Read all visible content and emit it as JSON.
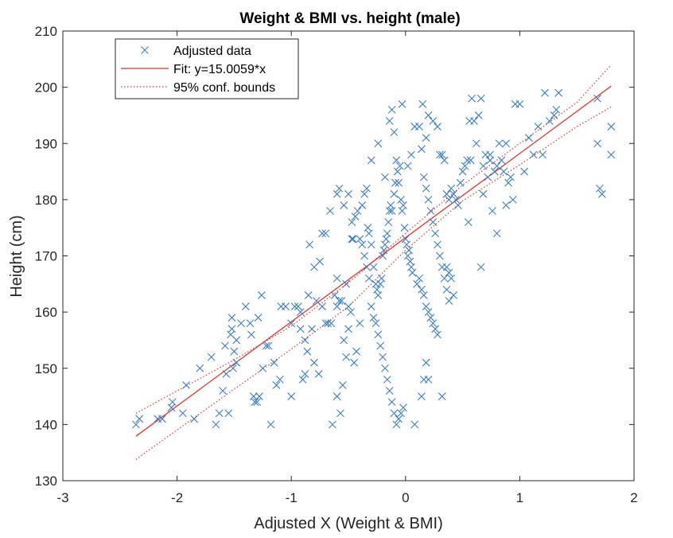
{
  "chart_data": {
    "type": "scatter",
    "title": "Weight & BMI vs. height (male)",
    "xlabel": "Adjusted X (Weight & BMI)",
    "ylabel": "Height (cm)",
    "xlim": [
      -3,
      2
    ],
    "ylim": [
      130,
      210
    ],
    "xticks": [
      "-3",
      "-2",
      "-1",
      "0",
      "1",
      "2"
    ],
    "yticks": [
      "130",
      "140",
      "150",
      "160",
      "170",
      "180",
      "190",
      "200",
      "210"
    ],
    "grid": false,
    "legend_position": "top-left",
    "colors": {
      "data": "#3d7fc4",
      "fit": "#e8312a",
      "bounds": "#e8312a",
      "axes": "#262626"
    },
    "series": [
      {
        "name": "Adjusted data",
        "kind": "scatter",
        "marker": "x",
        "points": [
          [
            -2.36,
            140
          ],
          [
            -2.33,
            141
          ],
          [
            -2.17,
            141
          ],
          [
            -2.13,
            141
          ],
          [
            -2.05,
            143
          ],
          [
            -2.04,
            144
          ],
          [
            -1.95,
            142
          ],
          [
            -1.92,
            147
          ],
          [
            -1.85,
            141
          ],
          [
            -1.8,
            150
          ],
          [
            -1.7,
            152
          ],
          [
            -1.66,
            140
          ],
          [
            -1.63,
            142
          ],
          [
            -1.6,
            146
          ],
          [
            -1.58,
            154
          ],
          [
            -1.57,
            149
          ],
          [
            -1.55,
            142
          ],
          [
            -1.53,
            156
          ],
          [
            -1.5,
            153
          ],
          [
            -1.48,
            151
          ],
          [
            -1.52,
            159
          ],
          [
            -1.52,
            157
          ],
          [
            -1.51,
            150
          ],
          [
            -1.48,
            155
          ],
          [
            -1.36,
            158
          ],
          [
            -1.35,
            156
          ],
          [
            -1.33,
            145
          ],
          [
            -1.32,
            144
          ],
          [
            -1.3,
            144
          ],
          [
            -1.29,
            159
          ],
          [
            -1.28,
            145
          ],
          [
            -1.26,
            163
          ],
          [
            -1.25,
            150
          ],
          [
            -1.22,
            154
          ],
          [
            -1.2,
            154
          ],
          [
            -1.18,
            140
          ],
          [
            -1.15,
            151
          ],
          [
            -1.13,
            147
          ],
          [
            -1.1,
            148
          ],
          [
            -1.09,
            161
          ],
          [
            -1.05,
            161
          ],
          [
            -1.0,
            145
          ],
          [
            -0.97,
            161
          ],
          [
            -0.94,
            161
          ],
          [
            -0.92,
            160
          ],
          [
            -0.9,
            148
          ],
          [
            -0.88,
            149
          ],
          [
            -0.86,
            153
          ],
          [
            -0.85,
            163
          ],
          [
            -0.82,
            157
          ],
          [
            -0.84,
            172
          ],
          [
            -0.8,
            168
          ],
          [
            -0.78,
            162
          ],
          [
            -0.75,
            169
          ],
          [
            -0.73,
            161
          ],
          [
            -0.7,
            158
          ],
          [
            -0.73,
            174
          ],
          [
            -0.7,
            174
          ],
          [
            -0.68,
            158
          ],
          [
            -0.66,
            178
          ],
          [
            -0.65,
            158
          ],
          [
            -0.62,
            163
          ],
          [
            -0.6,
            161
          ],
          [
            -0.58,
            162
          ],
          [
            -0.56,
            162
          ],
          [
            -0.54,
            155
          ],
          [
            -0.52,
            165
          ],
          [
            -0.5,
            161
          ],
          [
            -0.48,
            160
          ],
          [
            -0.47,
            176
          ],
          [
            -0.46,
            173
          ],
          [
            -0.6,
            166
          ],
          [
            -0.64,
            140
          ],
          [
            -0.6,
            145
          ],
          [
            -0.57,
            142
          ],
          [
            -0.55,
            147
          ],
          [
            -0.52,
            152
          ],
          [
            -0.5,
            157
          ],
          [
            -0.47,
            173
          ],
          [
            -0.45,
            151
          ],
          [
            -0.43,
            153
          ],
          [
            -0.4,
            158
          ],
          [
            -0.38,
            179
          ],
          [
            -0.36,
            181
          ],
          [
            -0.34,
            182
          ],
          [
            -0.33,
            175
          ],
          [
            -0.32,
            174
          ],
          [
            -0.3,
            172
          ],
          [
            -0.28,
            168
          ],
          [
            -0.26,
            165
          ],
          [
            -0.25,
            164
          ],
          [
            -0.24,
            163
          ],
          [
            -0.22,
            165
          ],
          [
            -0.21,
            166
          ],
          [
            -0.2,
            170
          ],
          [
            -0.19,
            171
          ],
          [
            -0.18,
            172
          ],
          [
            -0.17,
            173
          ],
          [
            -0.16,
            174
          ],
          [
            -0.15,
            176
          ],
          [
            -0.14,
            178
          ],
          [
            -0.13,
            179
          ],
          [
            -0.12,
            178
          ],
          [
            -0.1,
            181
          ],
          [
            -0.09,
            183
          ],
          [
            -0.08,
            187
          ],
          [
            -0.07,
            185
          ],
          [
            -0.06,
            183
          ],
          [
            -0.05,
            186
          ],
          [
            -0.04,
            180
          ],
          [
            -0.03,
            178
          ],
          [
            -0.02,
            179
          ],
          [
            -0.01,
            175
          ],
          [
            0.0,
            173
          ],
          [
            0.01,
            172
          ],
          [
            0.02,
            170
          ],
          [
            0.03,
            171
          ],
          [
            0.04,
            169
          ],
          [
            0.05,
            168
          ],
          [
            0.06,
            167
          ],
          [
            -0.4,
            173
          ],
          [
            -0.38,
            172
          ],
          [
            -0.36,
            170
          ],
          [
            -0.34,
            168
          ],
          [
            -0.32,
            166
          ],
          [
            -0.3,
            161
          ],
          [
            -0.28,
            159
          ],
          [
            -0.26,
            158
          ],
          [
            -0.24,
            156
          ],
          [
            -0.22,
            154
          ],
          [
            -0.2,
            152
          ],
          [
            -0.18,
            150
          ],
          [
            -0.16,
            148
          ],
          [
            -0.14,
            146
          ],
          [
            -0.12,
            144
          ],
          [
            -0.1,
            142
          ],
          [
            -0.08,
            140
          ],
          [
            -0.06,
            141
          ],
          [
            -0.04,
            142
          ],
          [
            -0.02,
            143
          ],
          [
            -0.6,
            181
          ],
          [
            -0.58,
            182
          ],
          [
            -0.54,
            179
          ],
          [
            -0.5,
            181
          ],
          [
            -0.44,
            177
          ],
          [
            -0.42,
            178
          ],
          [
            -0.3,
            187
          ],
          [
            -0.24,
            190
          ],
          [
            -0.18,
            184
          ],
          [
            -0.14,
            194
          ],
          [
            -0.12,
            196
          ],
          [
            -0.1,
            192
          ],
          [
            -0.03,
            197
          ],
          [
            0.02,
            186
          ],
          [
            0.05,
            188
          ],
          [
            0.08,
            193
          ],
          [
            0.12,
            193
          ],
          [
            0.14,
            189
          ],
          [
            0.16,
            184
          ],
          [
            0.18,
            182
          ],
          [
            0.2,
            180
          ],
          [
            0.22,
            178
          ],
          [
            0.24,
            176
          ],
          [
            0.26,
            174
          ],
          [
            0.28,
            172
          ],
          [
            0.3,
            170
          ],
          [
            0.32,
            168
          ],
          [
            0.34,
            166
          ],
          [
            0.36,
            164
          ],
          [
            0.38,
            162
          ],
          [
            0.1,
            165
          ],
          [
            0.12,
            166
          ],
          [
            0.14,
            164
          ],
          [
            0.16,
            163
          ],
          [
            0.18,
            161
          ],
          [
            0.2,
            160
          ],
          [
            0.22,
            159
          ],
          [
            0.24,
            158
          ],
          [
            0.26,
            157
          ],
          [
            0.28,
            156
          ],
          [
            0.08,
            140
          ],
          [
            0.14,
            145
          ],
          [
            0.16,
            148
          ],
          [
            0.18,
            151
          ],
          [
            0.2,
            148
          ],
          [
            0.32,
            145
          ],
          [
            0.36,
            168
          ],
          [
            0.38,
            167
          ],
          [
            0.4,
            166
          ],
          [
            0.42,
            163
          ],
          [
            0.15,
            197
          ],
          [
            0.18,
            191
          ],
          [
            0.2,
            195
          ],
          [
            0.24,
            194
          ],
          [
            0.28,
            193
          ],
          [
            0.3,
            188
          ],
          [
            0.32,
            188
          ],
          [
            0.34,
            187
          ],
          [
            0.36,
            181
          ],
          [
            0.38,
            180
          ],
          [
            0.4,
            182
          ],
          [
            0.42,
            181
          ],
          [
            0.44,
            180
          ],
          [
            0.46,
            179
          ],
          [
            0.48,
            183
          ],
          [
            0.5,
            185
          ],
          [
            0.52,
            186
          ],
          [
            0.54,
            187
          ],
          [
            0.56,
            194
          ],
          [
            0.58,
            198
          ],
          [
            0.55,
            176
          ],
          [
            0.57,
            187
          ],
          [
            0.6,
            194
          ],
          [
            0.62,
            190
          ],
          [
            0.64,
            195
          ],
          [
            0.66,
            198
          ],
          [
            0.68,
            181
          ],
          [
            0.7,
            188
          ],
          [
            0.72,
            184
          ],
          [
            0.74,
            188
          ],
          [
            0.76,
            178
          ],
          [
            0.78,
            185
          ],
          [
            0.8,
            174
          ],
          [
            0.82,
            190
          ],
          [
            0.84,
            187
          ],
          [
            0.86,
            185
          ],
          [
            0.88,
            179
          ],
          [
            0.9,
            183
          ],
          [
            0.92,
            184
          ],
          [
            0.94,
            180
          ],
          [
            0.66,
            168
          ],
          [
            0.68,
            186
          ],
          [
            0.74,
            187
          ],
          [
            0.8,
            186
          ],
          [
            0.88,
            190
          ],
          [
            0.96,
            197
          ],
          [
            1.0,
            197
          ],
          [
            1.04,
            185
          ],
          [
            1.08,
            191
          ],
          [
            1.12,
            188
          ],
          [
            1.16,
            193
          ],
          [
            1.2,
            188
          ],
          [
            1.22,
            199
          ],
          [
            1.26,
            194
          ],
          [
            1.3,
            195
          ],
          [
            1.32,
            196
          ],
          [
            1.34,
            199
          ],
          [
            1.68,
            198
          ],
          [
            1.68,
            190
          ],
          [
            1.7,
            182
          ],
          [
            1.72,
            181
          ],
          [
            1.8,
            193
          ],
          [
            1.8,
            188
          ],
          [
            -1.0,
            158
          ],
          [
            -0.92,
            157
          ],
          [
            -0.88,
            155
          ],
          [
            -0.8,
            151
          ],
          [
            -0.76,
            149
          ],
          [
            -1.4,
            161
          ],
          [
            -1.44,
            158
          ]
        ]
      },
      {
        "name": "Fit: y=15.0059*x",
        "kind": "line",
        "style": "solid",
        "points": [
          [
            -2.36,
            137.9
          ],
          [
            1.8,
            200.2
          ]
        ]
      },
      {
        "name": "95% conf. bounds",
        "kind": "line",
        "style": "dotted",
        "upper": [
          [
            -2.36,
            142.0
          ],
          [
            -1.5,
            151.5
          ],
          [
            -1.0,
            157.5
          ],
          [
            -0.5,
            165.2
          ],
          [
            0.0,
            174.0
          ],
          [
            0.5,
            182.6
          ],
          [
            1.0,
            190.0
          ],
          [
            1.5,
            197.3
          ],
          [
            1.8,
            204.0
          ]
        ],
        "lower": [
          [
            -2.36,
            133.8
          ],
          [
            -1.5,
            146.3
          ],
          [
            -1.0,
            153.4
          ],
          [
            -0.5,
            161.0
          ],
          [
            0.0,
            171.0
          ],
          [
            0.5,
            179.8
          ],
          [
            1.0,
            186.2
          ],
          [
            1.5,
            193.0
          ],
          [
            1.8,
            196.5
          ]
        ]
      }
    ]
  }
}
